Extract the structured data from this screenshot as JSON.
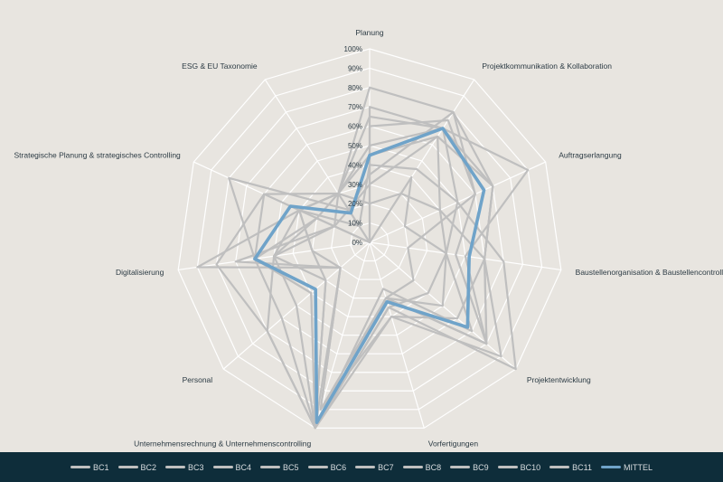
{
  "chart_data": {
    "type": "radar",
    "categories": [
      "Planung",
      "Projektkommunikation & Kollaboration",
      "Auftragserlangung",
      "Baustellenorganisation & Baustellencontrolling",
      "Projektentwicklung",
      "Vorfertigungen",
      "Unternehmensrechnung & Unternehmenscontrolling",
      "Personal",
      "Digitalisierung",
      "Strategische Planung &  strategisches Controlling",
      "ESG & EU Taxonomie"
    ],
    "ticks": [
      "0%",
      "10%",
      "20%",
      "30%",
      "40%",
      "50%",
      "60%",
      "70%",
      "80%",
      "90%",
      "100%"
    ],
    "rlim": [
      0,
      100
    ],
    "grid": true,
    "legend_position": "bottom",
    "colors": {
      "background": "#e8e5e0",
      "grid": "#ffffff",
      "series": "#bfbfbf",
      "mittel": "#6fa3c9",
      "legend_bar": "#0e2d3a"
    },
    "series": [
      {
        "name": "BC1",
        "values": [
          80,
          80,
          70,
          60,
          80,
          30,
          100,
          40,
          60,
          60,
          30
        ]
      },
      {
        "name": "BC2",
        "values": [
          60,
          75,
          60,
          45,
          80,
          30,
          100,
          70,
          80,
          60,
          0
        ]
      },
      {
        "name": "BC3",
        "values": [
          40,
          45,
          50,
          40,
          70,
          25,
          100,
          50,
          50,
          40,
          10
        ]
      },
      {
        "name": "BC4",
        "values": [
          70,
          70,
          50,
          70,
          100,
          35,
          100,
          40,
          60,
          30,
          0
        ]
      },
      {
        "name": "BC5",
        "values": [
          50,
          70,
          90,
          50,
          80,
          30,
          100,
          20,
          30,
          40,
          30
        ]
      },
      {
        "name": "BC6",
        "values": [
          20,
          30,
          40,
          60,
          60,
          40,
          90,
          20,
          90,
          40,
          30
        ]
      },
      {
        "name": "BC7",
        "values": [
          30,
          65,
          40,
          40,
          50,
          30,
          100,
          70,
          50,
          20,
          20
        ]
      },
      {
        "name": "BC8",
        "values": [
          35,
          80,
          60,
          20,
          30,
          30,
          100,
          60,
          60,
          80,
          20
        ]
      },
      {
        "name": "BC9",
        "values": [
          65,
          70,
          70,
          60,
          90,
          40,
          100,
          30,
          30,
          40,
          30
        ]
      },
      {
        "name": "BC10",
        "values": [
          45,
          65,
          70,
          60,
          80,
          30,
          90,
          20,
          70,
          20,
          30
        ]
      },
      {
        "name": "BC11",
        "values": [
          0,
          40,
          20,
          40,
          40,
          35,
          100,
          30,
          50,
          30,
          30
        ]
      },
      {
        "name": "MITTEL",
        "values": [
          45,
          70,
          65,
          52,
          67,
          32,
          97,
          37,
          60,
          45,
          18
        ]
      }
    ]
  }
}
